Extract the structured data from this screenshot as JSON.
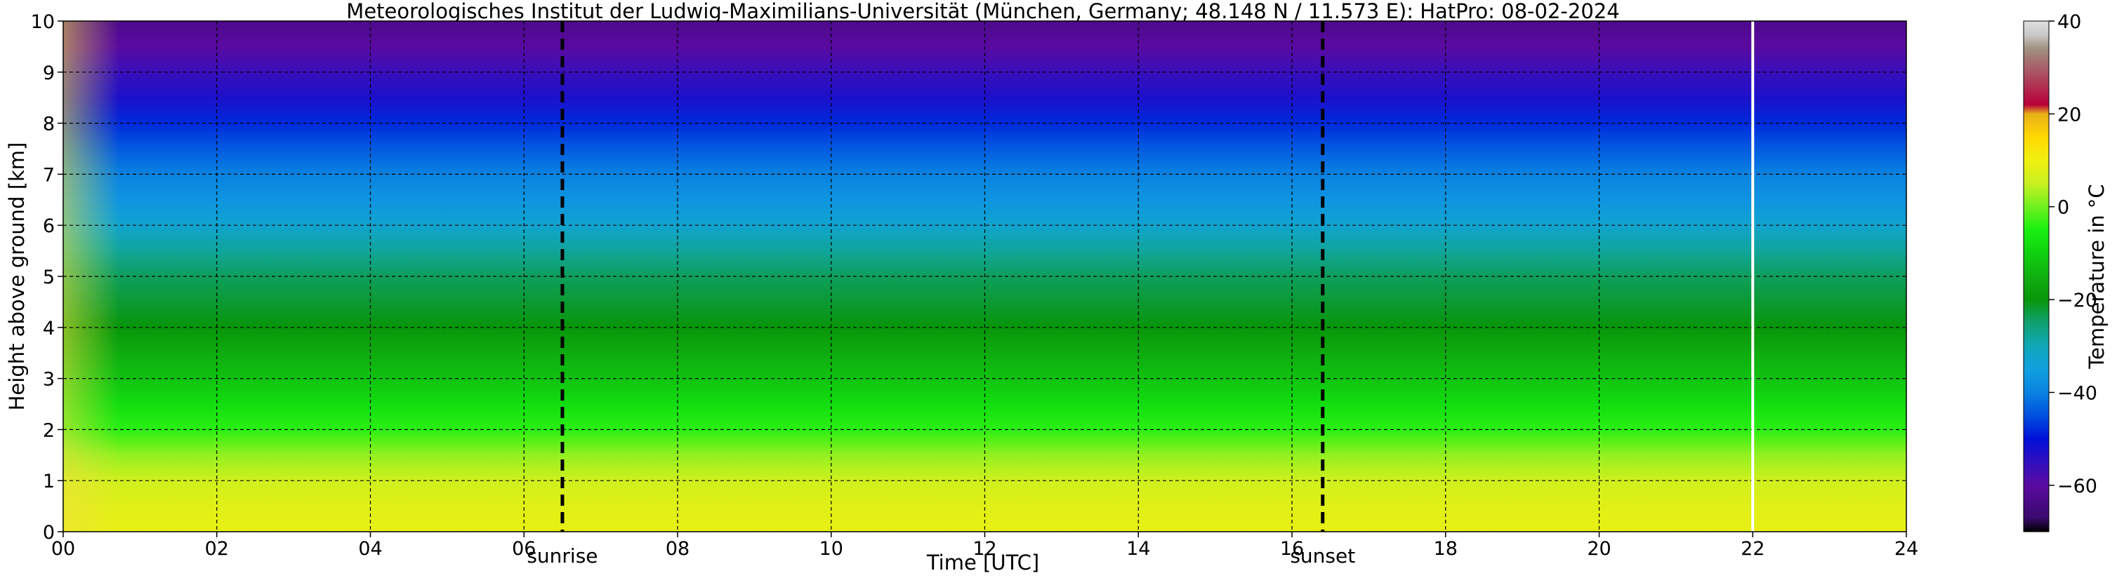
{
  "chart_data": {
    "type": "heatmap",
    "title": "Meteorologisches Institut der Ludwig-Maximilians-Universität (München, Germany; 48.148 N / 11.573 E):    HatPro: 08-02-2024",
    "xlabel": "Time [UTC]",
    "ylabel": "Height above ground [km]",
    "xlim": [
      0,
      24
    ],
    "ylim": [
      0,
      10
    ],
    "x_ticks": [
      0,
      2,
      4,
      6,
      8,
      10,
      12,
      14,
      16,
      18,
      20,
      22,
      24
    ],
    "x_tick_labels": [
      "00",
      "02",
      "04",
      "06",
      "08",
      "10",
      "12",
      "14",
      "16",
      "18",
      "20",
      "22",
      "24"
    ],
    "y_ticks": [
      0,
      1,
      2,
      3,
      4,
      5,
      6,
      7,
      8,
      9,
      10
    ],
    "y_tick_labels": [
      "0",
      "1",
      "2",
      "3",
      "4",
      "5",
      "6",
      "7",
      "8",
      "9",
      "10"
    ],
    "grid": true,
    "colorbar": {
      "label": "Temperature in °C",
      "range": [
        -70,
        40
      ],
      "ticks": [
        40,
        20,
        0,
        -20,
        -40,
        -60
      ],
      "tick_labels": [
        "40",
        "20",
        "0",
        "−20",
        "−40",
        "−60"
      ],
      "stops": [
        {
          "value": -70,
          "color": "#000000"
        },
        {
          "value": -67,
          "color": "#3a0a6e"
        },
        {
          "value": -60,
          "color": "#5a0aa0"
        },
        {
          "value": -55,
          "color": "#3010c0"
        },
        {
          "value": -50,
          "color": "#0010d8"
        },
        {
          "value": -45,
          "color": "#0050e0"
        },
        {
          "value": -40,
          "color": "#0a82e0"
        },
        {
          "value": -35,
          "color": "#10a0e0"
        },
        {
          "value": -30,
          "color": "#10a8b8"
        },
        {
          "value": -25,
          "color": "#10a070"
        },
        {
          "value": -20,
          "color": "#08960a"
        },
        {
          "value": -15,
          "color": "#10b010"
        },
        {
          "value": -10,
          "color": "#10d010"
        },
        {
          "value": -5,
          "color": "#18f010"
        },
        {
          "value": 0,
          "color": "#70f020"
        },
        {
          "value": 5,
          "color": "#c8f020"
        },
        {
          "value": 10,
          "color": "#f0f010"
        },
        {
          "value": 15,
          "color": "#ffd800"
        },
        {
          "value": 20,
          "color": "#e8b018"
        },
        {
          "value": 22,
          "color": "#b8003a"
        },
        {
          "value": 34,
          "color": "#a09080"
        },
        {
          "value": 37,
          "color": "#c8c8c8"
        },
        {
          "value": 40,
          "color": "#e0e0e0"
        }
      ]
    },
    "annotations": [
      {
        "label": "sunrise",
        "x": 6.5
      },
      {
        "label": "sunset",
        "x": 16.4
      }
    ],
    "data_gap_x": 22.0,
    "temperature_profile": {
      "heights_km": [
        0,
        0.5,
        1,
        1.5,
        2,
        2.5,
        3,
        3.5,
        4,
        4.5,
        5,
        5.5,
        6,
        6.5,
        7,
        7.5,
        8,
        8.5,
        9,
        9.5,
        10
      ],
      "temperature_c": [
        9,
        8,
        6,
        2,
        -4,
        -8,
        -12,
        -16,
        -20,
        -22,
        -24,
        -28,
        -33,
        -37,
        -40,
        -44,
        -48,
        -53,
        -56,
        -60,
        -63
      ]
    }
  }
}
